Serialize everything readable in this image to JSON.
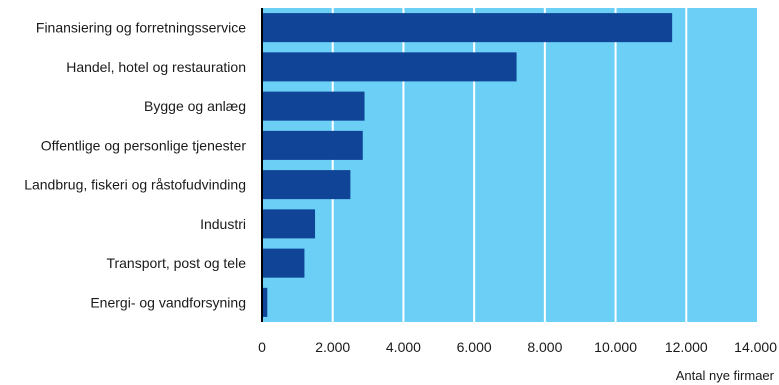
{
  "chart_data": {
    "type": "bar",
    "orientation": "horizontal",
    "categories": [
      "Finansiering og forretningsservice",
      "Handel, hotel og restauration",
      "Bygge og anlæg",
      "Offentlige og personlige tjenester",
      "Landbrug, fiskeri og råstofudvinding",
      "Industri",
      "Transport, post og tele",
      "Energi- og vandforsyning"
    ],
    "values": [
      11600,
      7200,
      2900,
      2850,
      2500,
      1500,
      1200,
      150
    ],
    "xlim": [
      0,
      14000
    ],
    "xticks": [
      0,
      2000,
      4000,
      6000,
      8000,
      10000,
      12000,
      14000
    ],
    "xtick_labels": [
      "0",
      "2.000",
      "4.000",
      "6.000",
      "8.000",
      "10.000",
      "12.000",
      "14.000"
    ],
    "xlabel": "Antal nye firmaer",
    "grid": "vertical",
    "colors": {
      "bar": "#0f4496",
      "plot_background": "#6ccff6",
      "grid": "#ffffff",
      "axis": "#000000"
    }
  }
}
